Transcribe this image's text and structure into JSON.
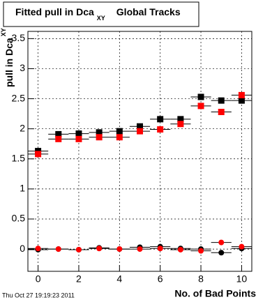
{
  "chart_data": {
    "type": "scatter",
    "title": "Fitted pull in Dca",
    "title_subscript": "XY",
    "title_suffix": "Global Tracks",
    "y_label": "pull in Dca",
    "y_label_subscript": "XY",
    "x_label": "No. of Bad Points",
    "footer": "Thu Oct 27 19:19:23 2011",
    "x": [
      0,
      1,
      2,
      3,
      4,
      5,
      6,
      7,
      8,
      9,
      10
    ],
    "x_error": 0.5,
    "series": [
      {
        "color": "#000000",
        "marker": "square",
        "values": [
          1.63,
          1.91,
          1.92,
          1.94,
          1.96,
          2.04,
          2.16,
          2.16,
          2.53,
          2.47,
          2.47
        ]
      },
      {
        "color": "#ff0000",
        "marker": "square",
        "values": [
          1.58,
          1.83,
          1.83,
          1.86,
          1.86,
          1.96,
          1.99,
          2.08,
          2.38,
          2.28,
          2.56
        ]
      },
      {
        "color": "#000000",
        "marker": "circle",
        "values": [
          -0.01,
          0.0,
          -0.01,
          0.02,
          0.0,
          0.03,
          0.04,
          0.01,
          0.0,
          -0.06,
          0.01
        ]
      },
      {
        "color": "#ff0000",
        "marker": "circle",
        "values": [
          0.01,
          0.0,
          -0.01,
          0.01,
          0.0,
          0.0,
          0.01,
          -0.01,
          -0.03,
          0.11,
          0.04
        ]
      }
    ],
    "xlim": [
      -0.5,
      10.5
    ],
    "xticks": [
      0,
      2,
      4,
      6,
      8,
      10
    ],
    "ylim": [
      -0.37,
      3.62
    ],
    "yticks": [
      0,
      0.5,
      1,
      1.5,
      2,
      2.5,
      3,
      3.5
    ],
    "grid": true
  }
}
